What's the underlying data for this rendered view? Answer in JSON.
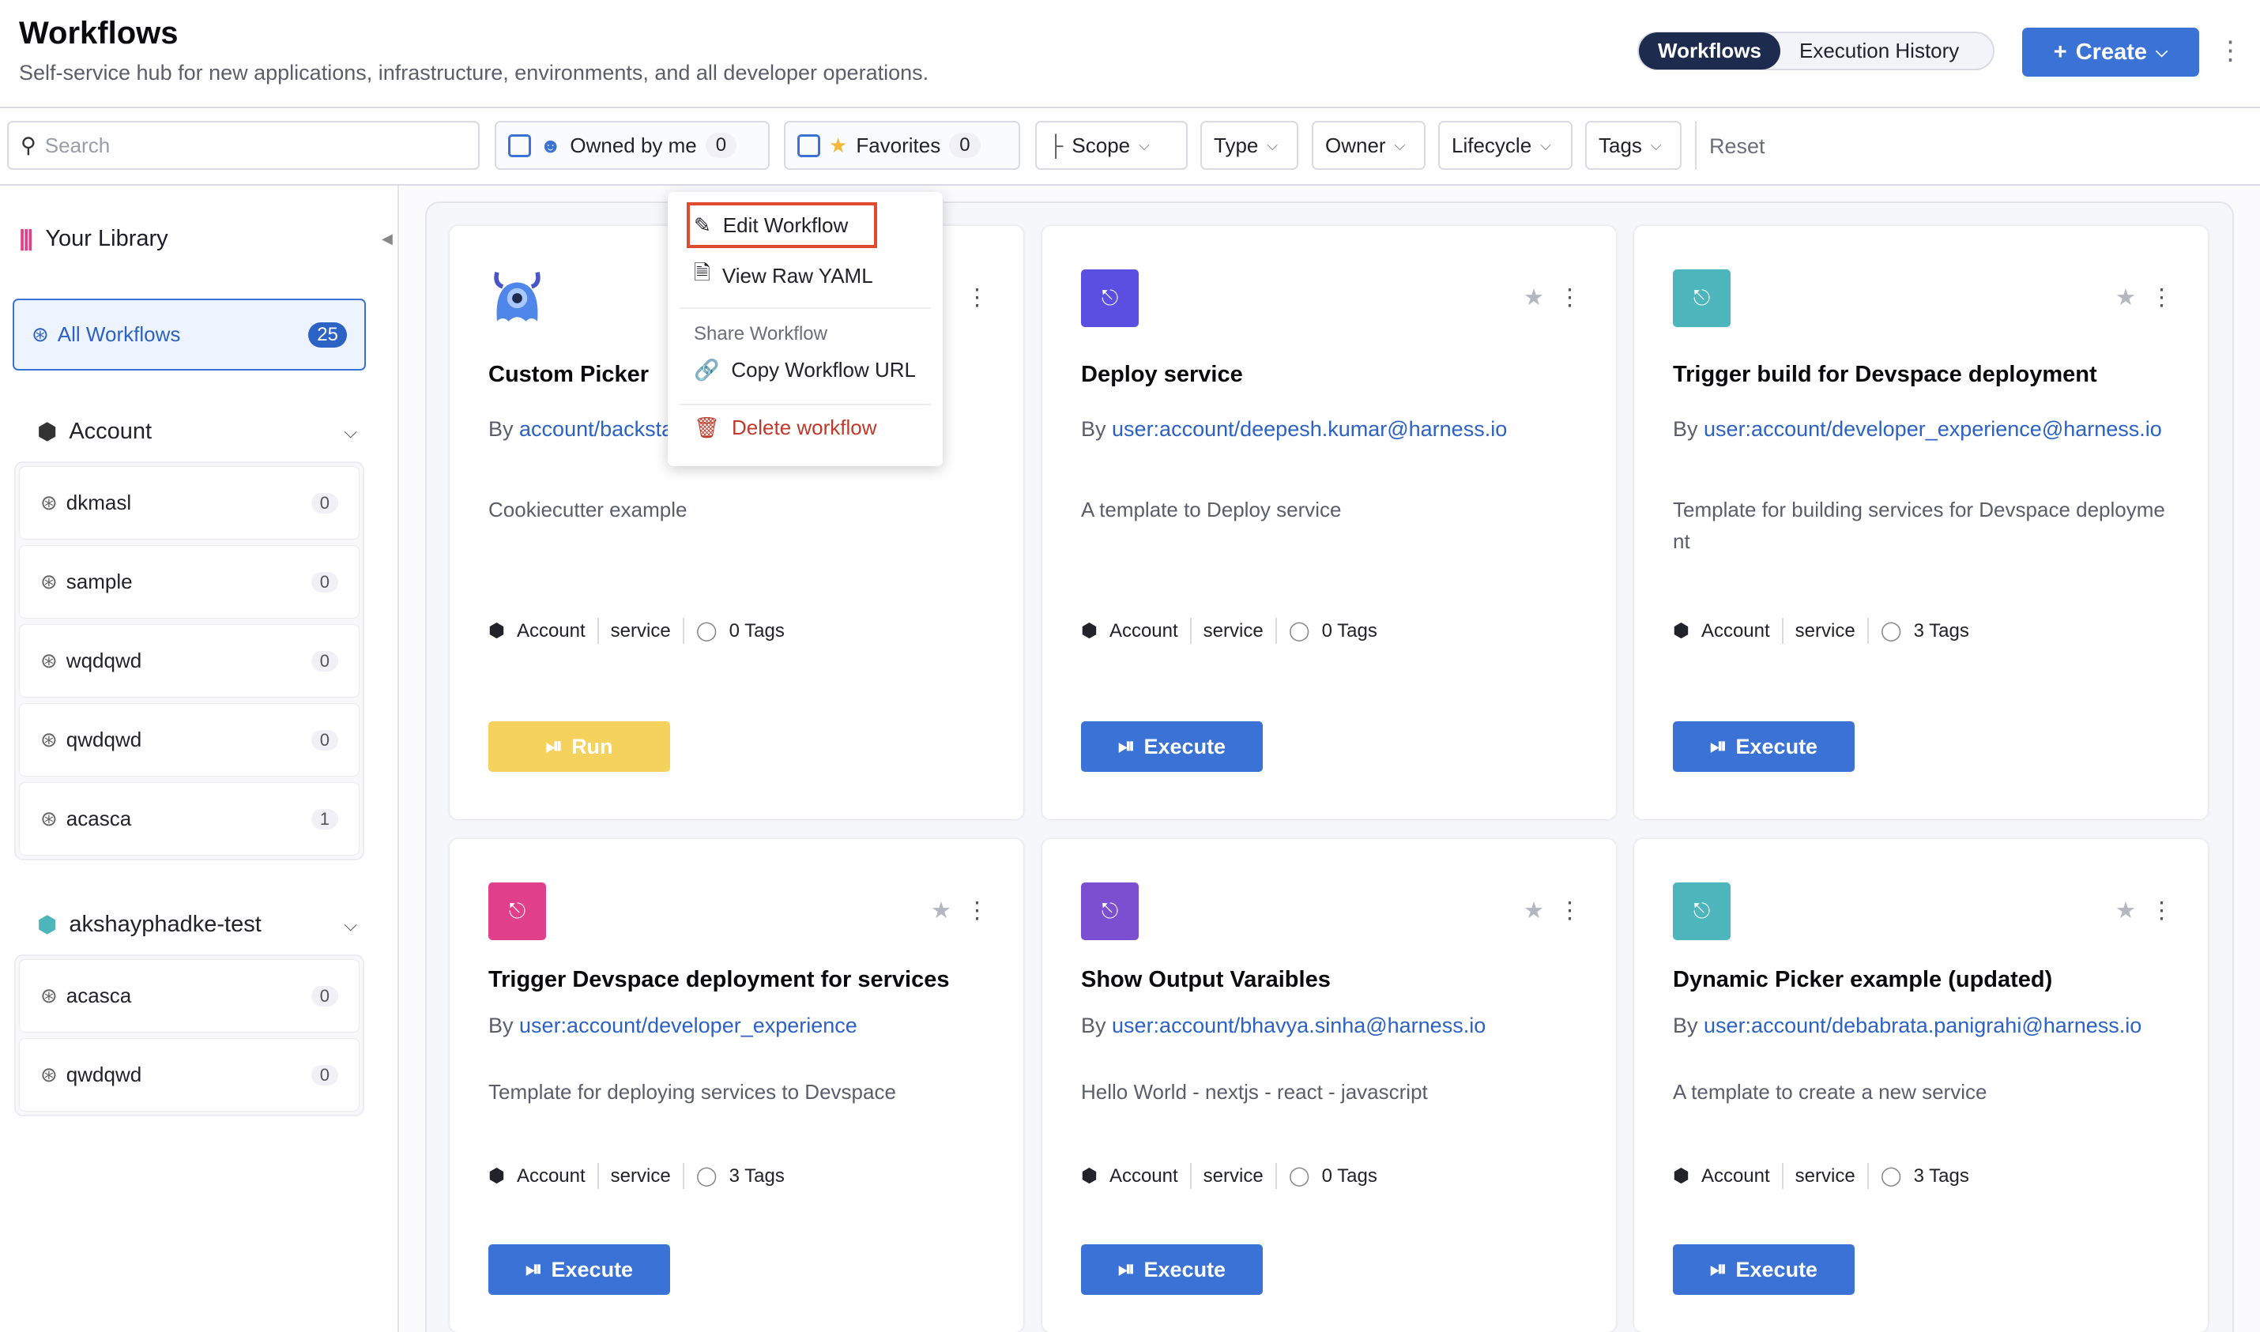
{
  "header": {
    "title": "Workflows",
    "subtitle": "Self-service hub for new applications, infrastructure, environments, and all developer operations.",
    "toggle": [
      "Workflows",
      "Execution History"
    ],
    "create_label": "Create"
  },
  "filters": {
    "search_placeholder": "Search",
    "owned_label": "Owned by me",
    "owned_count": "0",
    "favorites_label": "Favorites",
    "favorites_count": "0",
    "dropdowns": [
      "Scope",
      "Type",
      "Owner",
      "Lifecycle",
      "Tags"
    ],
    "reset_label": "Reset"
  },
  "sidebar": {
    "library_label": "Your Library",
    "all_label": "All Workflows",
    "all_count": "25",
    "groups": [
      {
        "name": "Account",
        "items": [
          {
            "label": "dkmasl",
            "count": "0"
          },
          {
            "label": "sample",
            "count": "0"
          },
          {
            "label": "wqdqwd",
            "count": "0"
          },
          {
            "label": "qwdqwd",
            "count": "0"
          },
          {
            "label": "acasca",
            "count": "1"
          }
        ]
      },
      {
        "name": "akshayphadke-test",
        "items": [
          {
            "label": "acasca",
            "count": "0"
          },
          {
            "label": "qwdqwd",
            "count": "0"
          }
        ]
      }
    ]
  },
  "cards": [
    {
      "title": "Custom Picker",
      "by_prefix": "By",
      "owner": "account/backstage",
      "desc": "Cookiecutter example",
      "scope": "Account",
      "type": "service",
      "tags": "0 Tags",
      "button": "Run",
      "icon": "monster-icon",
      "color": "#5b8def"
    },
    {
      "title": "Deploy service",
      "by_prefix": "By",
      "owner": "user:account/deepesh.kumar@harness.io",
      "desc": "A template to Deploy service",
      "scope": "Account",
      "type": "service",
      "tags": "0 Tags",
      "button": "Execute",
      "icon": "workflow-icon",
      "color": "#5a4fe0"
    },
    {
      "title": "Trigger build for Devspace deployment",
      "by_prefix": "By",
      "owner": "user:account/developer_experience@harness.io",
      "desc": "Template for building services for Devspace deployment",
      "scope": "Account",
      "type": "service",
      "tags": "3 Tags",
      "button": "Execute",
      "icon": "workflow-icon",
      "color": "#4db6bd"
    },
    {
      "title": "Trigger Devspace deployment for services",
      "by_prefix": "By",
      "owner": "user:account/developer_experience",
      "desc": "Template for deploying services to Devspace",
      "scope": "Account",
      "type": "service",
      "tags": "3 Tags",
      "button": "Execute",
      "icon": "workflow-icon",
      "color": "#e0408a"
    },
    {
      "title": "Show Output Varaibles",
      "by_prefix": "By",
      "owner": "user:account/bhavya.sinha@harness.io",
      "desc": "Hello World - nextjs - react - javascript",
      "scope": "Account",
      "type": "service",
      "tags": "0 Tags",
      "button": "Execute",
      "icon": "workflow-icon",
      "color": "#7b4fd0"
    },
    {
      "title": "Dynamic Picker example (updated)",
      "by_prefix": "By",
      "owner": "user:account/debabrata.panigrahi@harness.io",
      "desc": "A template to create a new service",
      "scope": "Account",
      "type": "service",
      "tags": "3 Tags",
      "button": "Execute",
      "icon": "workflow-icon",
      "color": "#4db6bd"
    }
  ],
  "menu": {
    "edit": "Edit Workflow",
    "yaml": "View Raw YAML",
    "share_heading": "Share Workflow",
    "copy": "Copy Workflow URL",
    "delete": "Delete workflow"
  },
  "colors": {
    "accent": "#3a72d6",
    "run": "#f5d25e",
    "danger": "#c0392b",
    "highlight": "#e04a2f"
  }
}
